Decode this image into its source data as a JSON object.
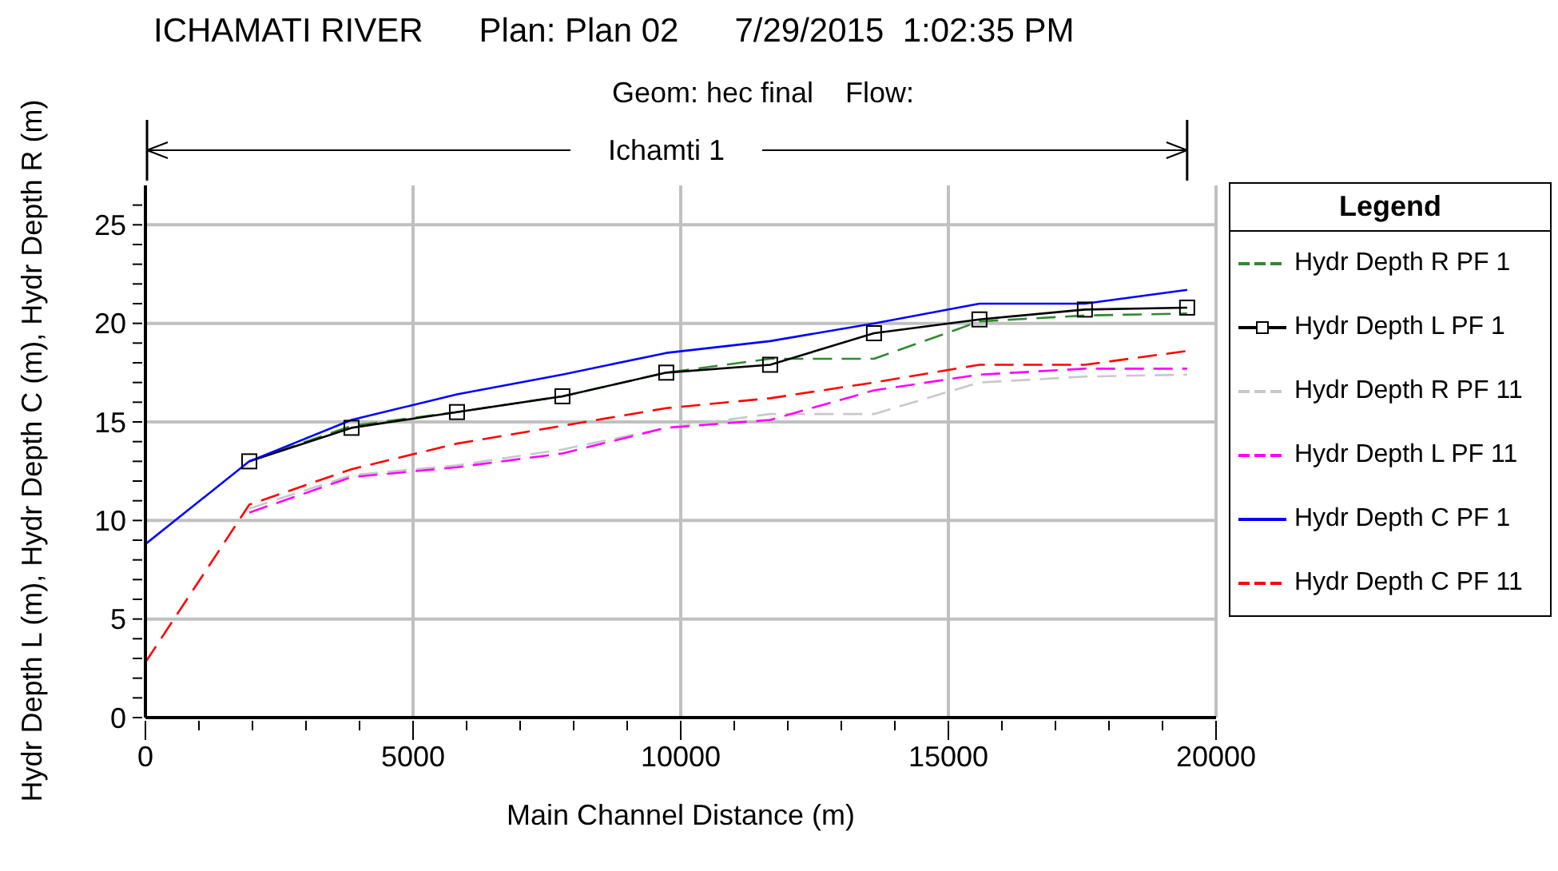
{
  "chart_data": {
    "type": "line",
    "title": "ICHAMATI RIVER      Plan: Plan 02      7/29/2015  1:02:35 PM",
    "subtitle": "Geom: hec final    Flow:",
    "xlabel": "Main Channel Distance (m)",
    "ylabel": "Hydr Depth L (m), Hydr Depth C (m), Hydr Depth R (m)",
    "legend_title": "Legend",
    "legend": "right",
    "grid": true,
    "annotations": [
      "Ichamti 1"
    ],
    "x": [
      0,
      1940,
      3850,
      5820,
      7790,
      9730,
      11670,
      13610,
      15580,
      17550,
      19460
    ],
    "xlim": [
      0,
      20000
    ],
    "xticks": [
      0,
      {
        "value": 1000,
        "label": null
      },
      {
        "value": 2000,
        "label": null
      },
      {
        "value": 3000,
        "label": null
      },
      {
        "value": 4000,
        "label": null
      },
      5000,
      {
        "value": 6000,
        "label": null
      },
      {
        "value": 7000,
        "label": null
      },
      {
        "value": 8000,
        "label": null
      },
      {
        "value": 9000,
        "label": null
      },
      10000,
      {
        "value": 11000,
        "label": null
      },
      {
        "value": 12000,
        "label": null
      },
      {
        "value": 13000,
        "label": null
      },
      {
        "value": 14000,
        "label": null
      },
      15000,
      {
        "value": 16000,
        "label": null
      },
      {
        "value": 17000,
        "label": null
      },
      {
        "value": 18000,
        "label": null
      },
      {
        "value": 19000,
        "label": null
      },
      20000
    ],
    "ylim": [
      0,
      27
    ],
    "yticks": [
      0,
      {
        "value": 1,
        "label": null
      },
      {
        "value": 2,
        "label": null
      },
      {
        "value": 3,
        "label": null
      },
      {
        "value": 4,
        "label": null
      },
      5,
      {
        "value": 6,
        "label": null
      },
      {
        "value": 7,
        "label": null
      },
      {
        "value": 8,
        "label": null
      },
      {
        "value": 9,
        "label": null
      },
      10,
      {
        "value": 11,
        "label": null
      },
      {
        "value": 12,
        "label": null
      },
      {
        "value": 13,
        "label": null
      },
      {
        "value": 14,
        "label": null
      },
      15,
      {
        "value": 16,
        "label": null
      },
      {
        "value": 17,
        "label": null
      },
      {
        "value": 18,
        "label": null
      },
      {
        "value": 19,
        "label": null
      },
      20,
      {
        "value": 21,
        "label": null
      },
      {
        "value": 22,
        "label": null
      },
      {
        "value": 23,
        "label": null
      },
      {
        "value": 24,
        "label": null
      },
      25,
      {
        "value": 26,
        "label": null
      }
    ],
    "series": [
      {
        "name": "Hydr Depth R PF 1",
        "color": "#2e8b2e",
        "line_style": "dashed",
        "marker": "none",
        "values": [
          null,
          13.0,
          14.8,
          15.5,
          16.3,
          17.5,
          18.2,
          18.2,
          20.1,
          20.4,
          20.5
        ]
      },
      {
        "name": "Hydr Depth L PF 1",
        "color": "#000000",
        "line_style": "solid",
        "marker": "square",
        "values": [
          null,
          13.0,
          14.7,
          15.5,
          16.3,
          17.5,
          17.9,
          19.5,
          20.2,
          20.7,
          20.8
        ]
      },
      {
        "name": "Hydr Depth R PF 11",
        "color": "#c8c8c8",
        "line_style": "dashed",
        "marker": "none",
        "values": [
          null,
          10.6,
          12.3,
          12.8,
          13.6,
          14.7,
          15.4,
          15.4,
          17.0,
          17.3,
          17.4
        ]
      },
      {
        "name": "Hydr Depth L PF 11",
        "color": "#ff00ff",
        "line_style": "dashed",
        "marker": "none",
        "values": [
          null,
          10.4,
          12.2,
          12.7,
          13.4,
          14.7,
          15.1,
          16.6,
          17.4,
          17.7,
          17.7
        ]
      },
      {
        "name": "Hydr Depth C PF 1",
        "color": "#0000ff",
        "line_style": "solid",
        "marker": "none",
        "values": [
          8.8,
          13.0,
          15.1,
          16.4,
          17.4,
          18.5,
          19.1,
          20.0,
          21.0,
          21.0,
          21.7
        ]
      },
      {
        "name": "Hydr Depth C PF 11",
        "color": "#ff0000",
        "line_style": "dashed",
        "marker": "none",
        "values": [
          2.8,
          10.8,
          12.6,
          13.9,
          14.8,
          15.7,
          16.2,
          17.0,
          17.9,
          17.9,
          18.6
        ]
      }
    ]
  }
}
